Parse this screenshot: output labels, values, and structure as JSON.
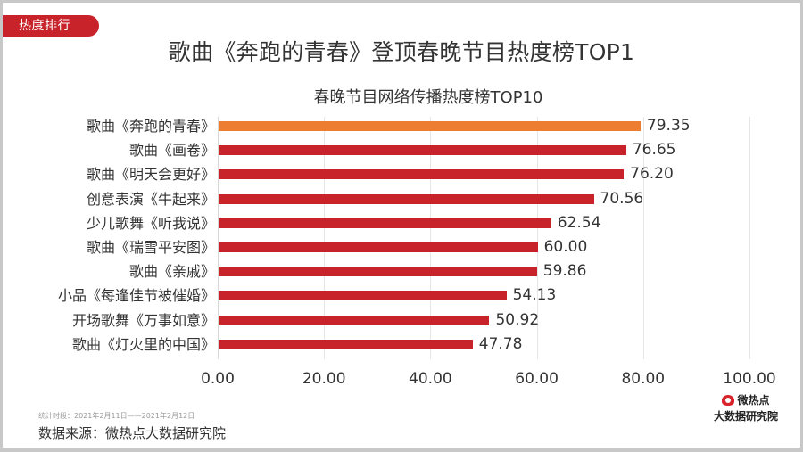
{
  "tag": {
    "label": "热度排行",
    "color": "#c8232b"
  },
  "main_title": "歌曲《奔跑的青春》登顶春晚节目热度榜TOP1",
  "footer": {
    "period": "统计时段：2021年2月11日——2021年2月12日",
    "source": "数据来源：微热点大数据研究院"
  },
  "logo": {
    "line1": "微热点",
    "line2": "大数据研究院"
  },
  "ticks": [
    "0.00",
    "20.00",
    "40.00",
    "60.00",
    "80.00",
    "100.00"
  ],
  "rows": [
    {
      "label": "歌曲《奔跑的青春》",
      "value": "79.35"
    },
    {
      "label": "歌曲《画卷》",
      "value": "76.65"
    },
    {
      "label": "歌曲《明天会更好》",
      "value": "76.20"
    },
    {
      "label": "创意表演《牛起来》",
      "value": "70.56"
    },
    {
      "label": "少儿歌舞《听我说》",
      "value": "62.54"
    },
    {
      "label": "歌曲《瑞雪平安图》",
      "value": "60.00"
    },
    {
      "label": "歌曲《亲戚》",
      "value": "59.86"
    },
    {
      "label": "小品《每逢佳节被催婚》",
      "value": "54.13"
    },
    {
      "label": "开场歌舞《万事如意》",
      "value": "50.92"
    },
    {
      "label": "歌曲《灯火里的中国》",
      "value": "47.78"
    }
  ],
  "chart_data": {
    "type": "bar",
    "orientation": "horizontal",
    "title": "春晚节目网络传播热度榜TOP10",
    "xlabel": "",
    "ylabel": "",
    "categories": [
      "歌曲《奔跑的青春》",
      "歌曲《画卷》",
      "歌曲《明天会更好》",
      "创意表演《牛起来》",
      "少儿歌舞《听我说》",
      "歌曲《瑞雪平安图》",
      "歌曲《亲戚》",
      "小品《每逢佳节被催婚》",
      "开场歌舞《万事如意》",
      "歌曲《灯火里的中国》"
    ],
    "values": [
      79.35,
      76.65,
      76.2,
      70.56,
      62.54,
      60.0,
      59.86,
      54.13,
      50.92,
      47.78
    ],
    "xlim": [
      0,
      100
    ],
    "xticks": [
      0,
      20,
      40,
      60,
      80,
      100
    ],
    "grid": "vertical",
    "legend": "none",
    "data_labels": true,
    "highlight_color": "#ed7d31",
    "bar_color": "#c8232b"
  }
}
